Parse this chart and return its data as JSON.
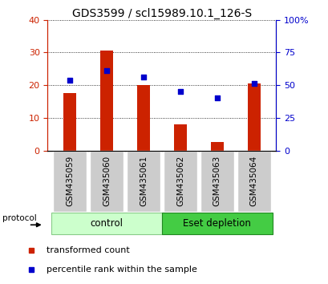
{
  "title": "GDS3599 / scl15989.10.1_126-S",
  "categories": [
    "GSM435059",
    "GSM435060",
    "GSM435061",
    "GSM435062",
    "GSM435063",
    "GSM435064"
  ],
  "bar_values": [
    17.5,
    30.5,
    20.0,
    8.0,
    2.5,
    20.5
  ],
  "scatter_values_left_scale": [
    21.5,
    24.5,
    22.5,
    18.0,
    16.0,
    20.5
  ],
  "bar_color": "#cc2200",
  "scatter_color": "#0000cc",
  "ylim_left": [
    0,
    40
  ],
  "ylim_right": [
    0,
    100
  ],
  "yticks_left": [
    0,
    10,
    20,
    30,
    40
  ],
  "yticks_right": [
    0,
    25,
    50,
    75,
    100
  ],
  "ytick_labels_right": [
    "0",
    "25",
    "50",
    "75",
    "100%"
  ],
  "legend_bar_label": "transformed count",
  "legend_scatter_label": "percentile rank within the sample",
  "protocol_label": "protocol",
  "bar_color_hex": "#cc2200",
  "scatter_color_hex": "#0000cc",
  "ctrl_color_light": "#ccffcc",
  "ctrl_color_border": "#88cc88",
  "eset_color": "#44cc44",
  "eset_color_border": "#228822",
  "tick_bg_color": "#cccccc",
  "title_fontsize": 10,
  "tick_fontsize": 8,
  "legend_fontsize": 8,
  "bar_width": 0.35
}
